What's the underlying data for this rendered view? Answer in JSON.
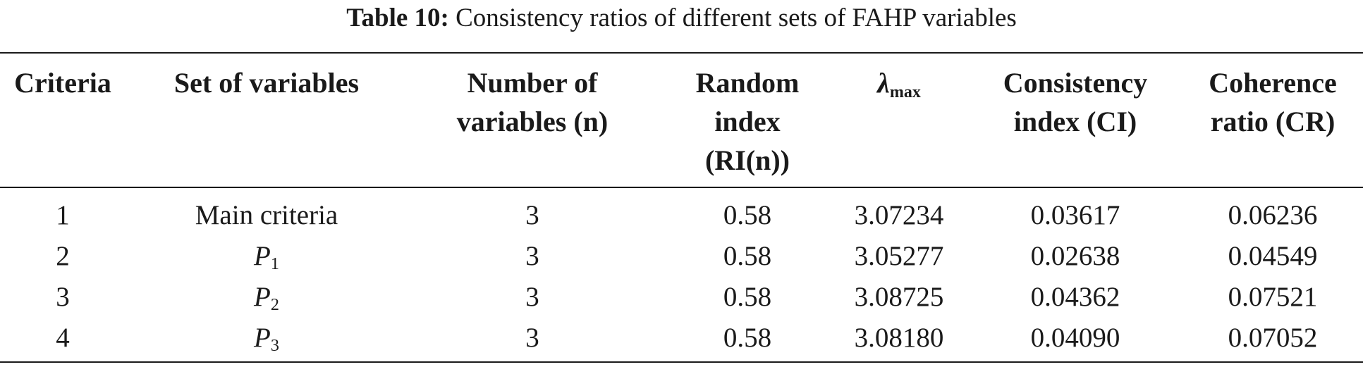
{
  "caption": {
    "label": "Table 10:",
    "text": "Consistency ratios of different sets of FAHP variables"
  },
  "headers": {
    "criteria": [
      "Criteria"
    ],
    "set": [
      "Set of variables"
    ],
    "number": [
      "Number of",
      "variables (n)"
    ],
    "random": [
      "Random",
      "index",
      "(RI(n))"
    ],
    "lambda_symbol": "λ",
    "lambda_sub": "max",
    "ci": [
      "Consistency",
      "index (CI)"
    ],
    "cr": [
      "Coherence",
      "ratio (CR)"
    ]
  },
  "rows": [
    {
      "criteria": "1",
      "set_main": "Main criteria",
      "set_sub": "",
      "n": "3",
      "ri": "0.58",
      "lmax": "3.07234",
      "ci": "0.03617",
      "cr": "0.06236"
    },
    {
      "criteria": "2",
      "set_main": "P",
      "set_sub": "1",
      "n": "3",
      "ri": "0.58",
      "lmax": "3.05277",
      "ci": "0.02638",
      "cr": "0.04549"
    },
    {
      "criteria": "3",
      "set_main": "P",
      "set_sub": "2",
      "n": "3",
      "ri": "0.58",
      "lmax": "3.08725",
      "ci": "0.04362",
      "cr": "0.07521"
    },
    {
      "criteria": "4",
      "set_main": "P",
      "set_sub": "3",
      "n": "3",
      "ri": "0.58",
      "lmax": "3.08180",
      "ci": "0.04090",
      "cr": "0.07052"
    }
  ]
}
